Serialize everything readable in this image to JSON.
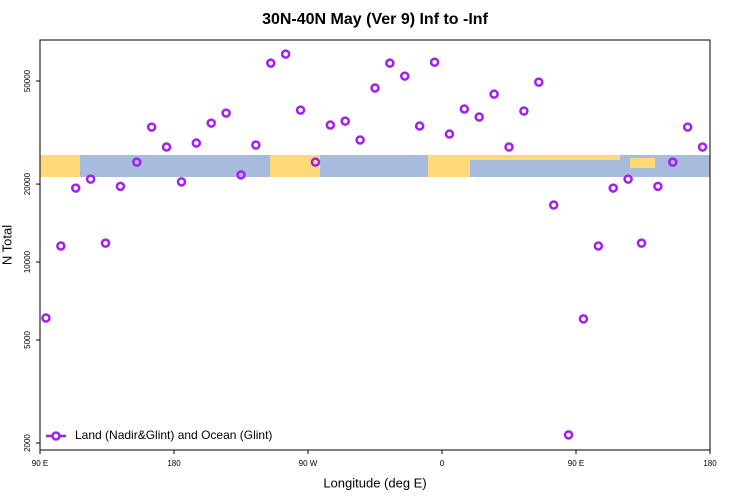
{
  "chart_data": {
    "type": "scatter",
    "title": "30N-40N May (Ver 9)   Inf to -Inf",
    "x_label": "Longitude (deg E)",
    "y_label": "N Total",
    "xlim": [
      90,
      540
    ],
    "xticks": [
      {
        "value": 90,
        "label": "90 E"
      },
      {
        "value": 180,
        "label": "180"
      },
      {
        "value": 270,
        "label": "90 W"
      },
      {
        "value": 360,
        "label": "0"
      },
      {
        "value": 450,
        "label": "90 E"
      },
      {
        "value": 540,
        "label": "180"
      }
    ],
    "ylim": [
      1880,
      72000
    ],
    "yticks": [
      2000,
      5000,
      10000,
      20000,
      50000
    ],
    "log_y": true,
    "legend": "bottom-left",
    "series": [
      {
        "name": "Land (Nadir&Glint) and Ocean (Glint)",
        "color": "#a020f0",
        "x": [
          94,
          104,
          114,
          124,
          134,
          144,
          155,
          165,
          175,
          185,
          195,
          205,
          215,
          225,
          235,
          245,
          255,
          265,
          275,
          285,
          295,
          305,
          315,
          325,
          335,
          345,
          355,
          365,
          375,
          385,
          395,
          405,
          415,
          425,
          435,
          445,
          455,
          465,
          475,
          485,
          494,
          505,
          515,
          525,
          535
        ],
        "values": [
          6080,
          11530,
          19300,
          20900,
          11830,
          19600,
          24300,
          33200,
          27800,
          20400,
          28800,
          34400,
          37600,
          21700,
          28300,
          58600,
          63500,
          38600,
          24300,
          33800,
          35000,
          29600,
          47000,
          58600,
          52200,
          33500,
          59100,
          31200,
          39000,
          36300,
          44500,
          27800,
          38300,
          49500,
          16600,
          2150,
          6030,
          11530,
          19300,
          20900,
          11830,
          19600,
          24300,
          33200,
          27800
        ]
      }
    ]
  }
}
